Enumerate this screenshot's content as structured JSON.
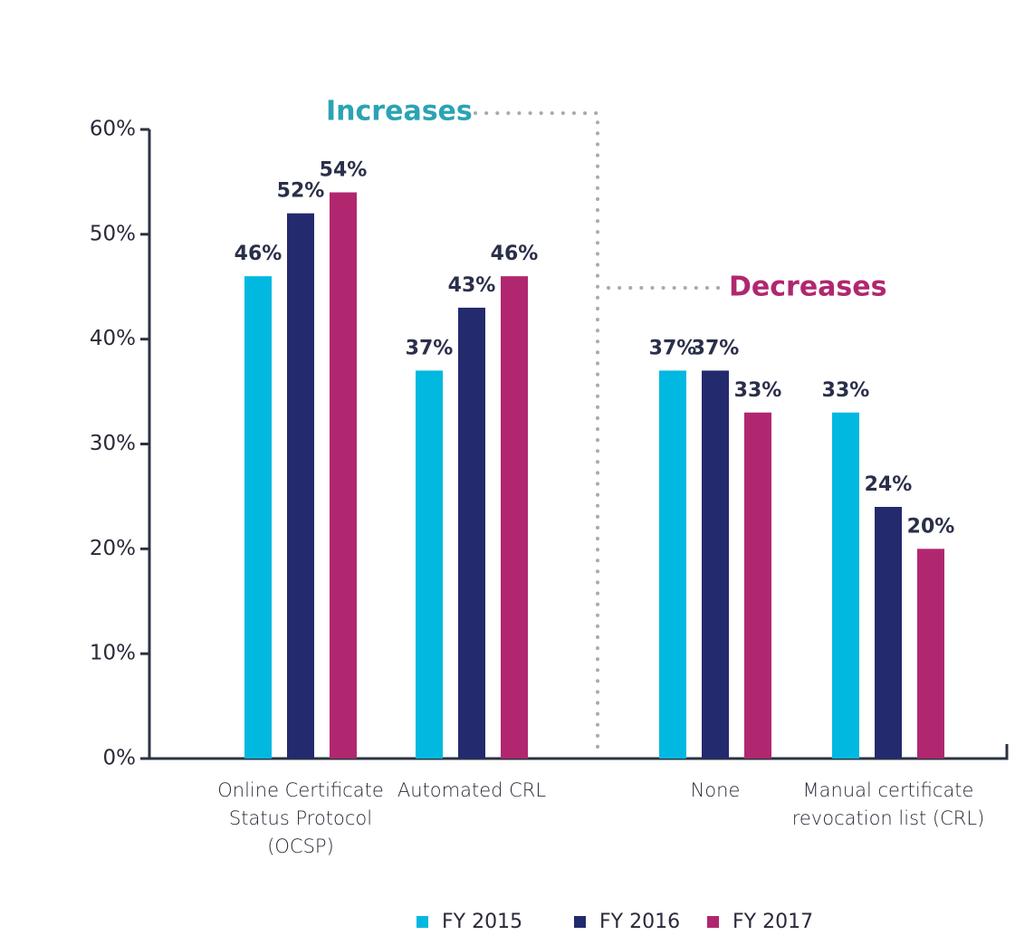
{
  "chart_data": {
    "type": "bar",
    "categories": [
      "Online Certificate Status Protocol (OCSP)",
      "Automated CRL",
      "None",
      "Manual certificate revocation list (CRL)"
    ],
    "series": [
      {
        "name": "FY 2015",
        "color": "#00b8e0",
        "values": [
          46,
          37,
          37,
          33
        ],
        "value_labels": [
          "46%",
          "37%",
          "37%",
          "33%"
        ]
      },
      {
        "name": "FY 2016",
        "color": "#232a6e",
        "values": [
          52,
          43,
          37,
          24
        ],
        "value_labels": [
          "52%",
          "43%",
          "37%",
          "24%"
        ]
      },
      {
        "name": "FY 2017",
        "color": "#b0276f",
        "values": [
          54,
          46,
          33,
          20
        ],
        "value_labels": [
          "54%",
          "46%",
          "33%",
          "20%"
        ]
      }
    ],
    "ylim": [
      0,
      60
    ],
    "yticks": [
      {
        "value": 0,
        "label": "0%"
      },
      {
        "value": 10,
        "label": "10%"
      },
      {
        "value": 20,
        "label": "20%"
      },
      {
        "value": 30,
        "label": "30%"
      },
      {
        "value": 40,
        "label": "40%"
      },
      {
        "value": 50,
        "label": "50%"
      },
      {
        "value": 60,
        "label": "60%"
      }
    ],
    "annotations": [
      "Increases",
      "Decreases"
    ],
    "legend": "bottom"
  }
}
